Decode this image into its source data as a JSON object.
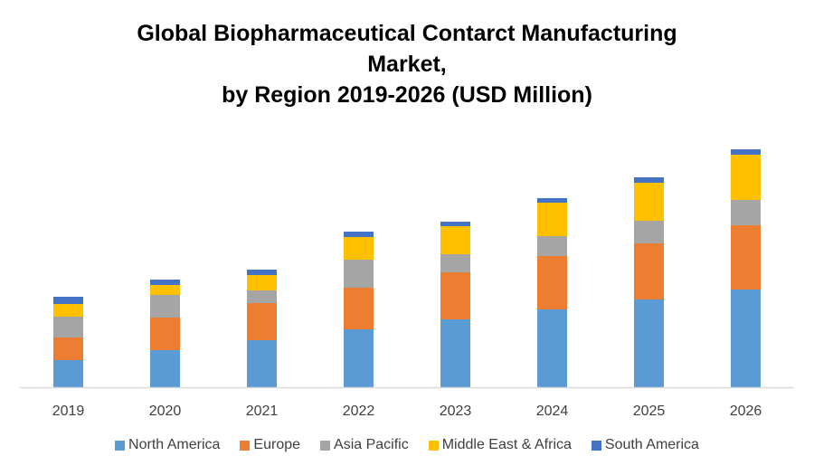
{
  "chart_data": {
    "type": "bar",
    "stacked": true,
    "title_lines": [
      "Global Biopharmaceutical Contarct Manufacturing",
      "Market,",
      "by Region 2019-2026 (USD Million)"
    ],
    "xlabel": "",
    "ylabel": "",
    "y_axis_visible": false,
    "grid": false,
    "legend_position": "bottom",
    "categories": [
      "2019",
      "2020",
      "2021",
      "2022",
      "2023",
      "2024",
      "2025",
      "2026"
    ],
    "series": [
      {
        "name": "North America",
        "color": "#5B9BD5",
        "values": [
          30,
          41,
          52,
          64,
          75,
          86,
          97,
          108
        ]
      },
      {
        "name": "Europe",
        "color": "#ED7D31",
        "values": [
          25,
          36,
          41,
          46,
          52,
          59,
          62,
          71
        ]
      },
      {
        "name": "Asia Pacific",
        "color": "#A5A5A5",
        "values": [
          23,
          25,
          14,
          31,
          20,
          22,
          25,
          28
        ]
      },
      {
        "name": "Middle East & Africa",
        "color": "#FFC000",
        "values": [
          14,
          11,
          17,
          25,
          31,
          37,
          42,
          50
        ]
      },
      {
        "name": "South America",
        "color": "#4472C4",
        "values": [
          8,
          6,
          6,
          6,
          5,
          5,
          6,
          6
        ]
      }
    ],
    "ylim": [
      0,
      270
    ]
  }
}
